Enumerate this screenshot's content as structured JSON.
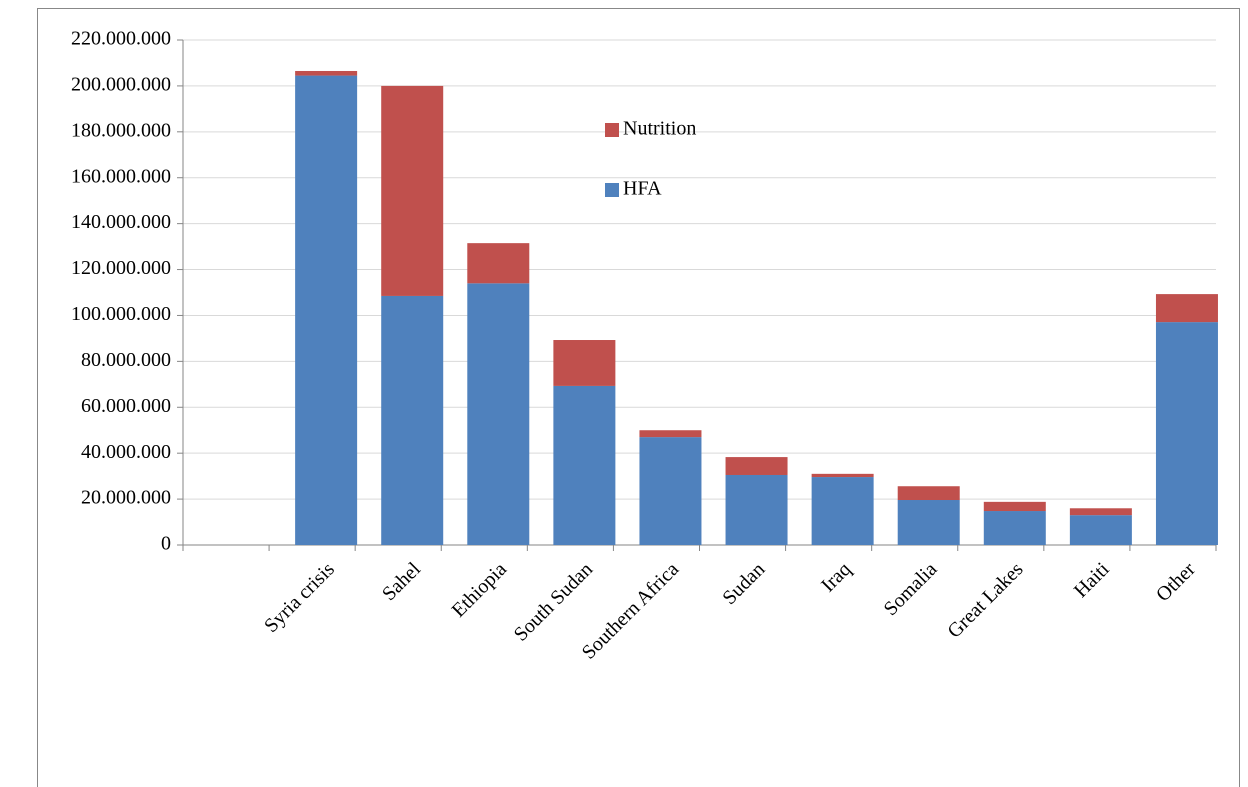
{
  "chart_data": {
    "type": "stacked-bar",
    "categories": [
      null,
      "Syria crisis",
      "Sahel",
      "Ethiopia",
      "South Sudan",
      "Southern Africa",
      "Sudan",
      "Iraq",
      "Somalia",
      "Great Lakes",
      "Haiti",
      "Other"
    ],
    "series": [
      {
        "name": "HFA",
        "color": "#4f81bd",
        "values": [
          null,
          204500000,
          108500000,
          114000000,
          69300000,
          47000000,
          30500000,
          29600000,
          19600000,
          14800000,
          13000000,
          97100000
        ]
      },
      {
        "name": "Nutrition",
        "color": "#c0504d",
        "values": [
          null,
          2000000,
          91500000,
          17500000,
          20000000,
          3000000,
          7800000,
          1400000,
          6000000,
          4000000,
          3000000,
          12200000
        ]
      }
    ],
    "ylim": [
      0,
      220000000
    ],
    "yticks": [
      0,
      {
        "value": 20000000,
        "label": "20.000.000"
      },
      {
        "value": 40000000,
        "label": "40.000.000"
      },
      {
        "value": 60000000,
        "label": "60.000.000"
      },
      {
        "value": 80000000,
        "label": "80.000.000"
      },
      {
        "value": 100000000,
        "label": "100.000.000"
      },
      {
        "value": 120000000,
        "label": "120.000.000"
      },
      {
        "value": 140000000,
        "label": "140.000.000"
      },
      {
        "value": 160000000,
        "label": "160.000.000"
      },
      {
        "value": 180000000,
        "label": "180.000.000"
      },
      {
        "value": 200000000,
        "label": "200.000.000"
      },
      {
        "value": 220000000,
        "label": "220.000.000"
      }
    ],
    "grid": true
  }
}
